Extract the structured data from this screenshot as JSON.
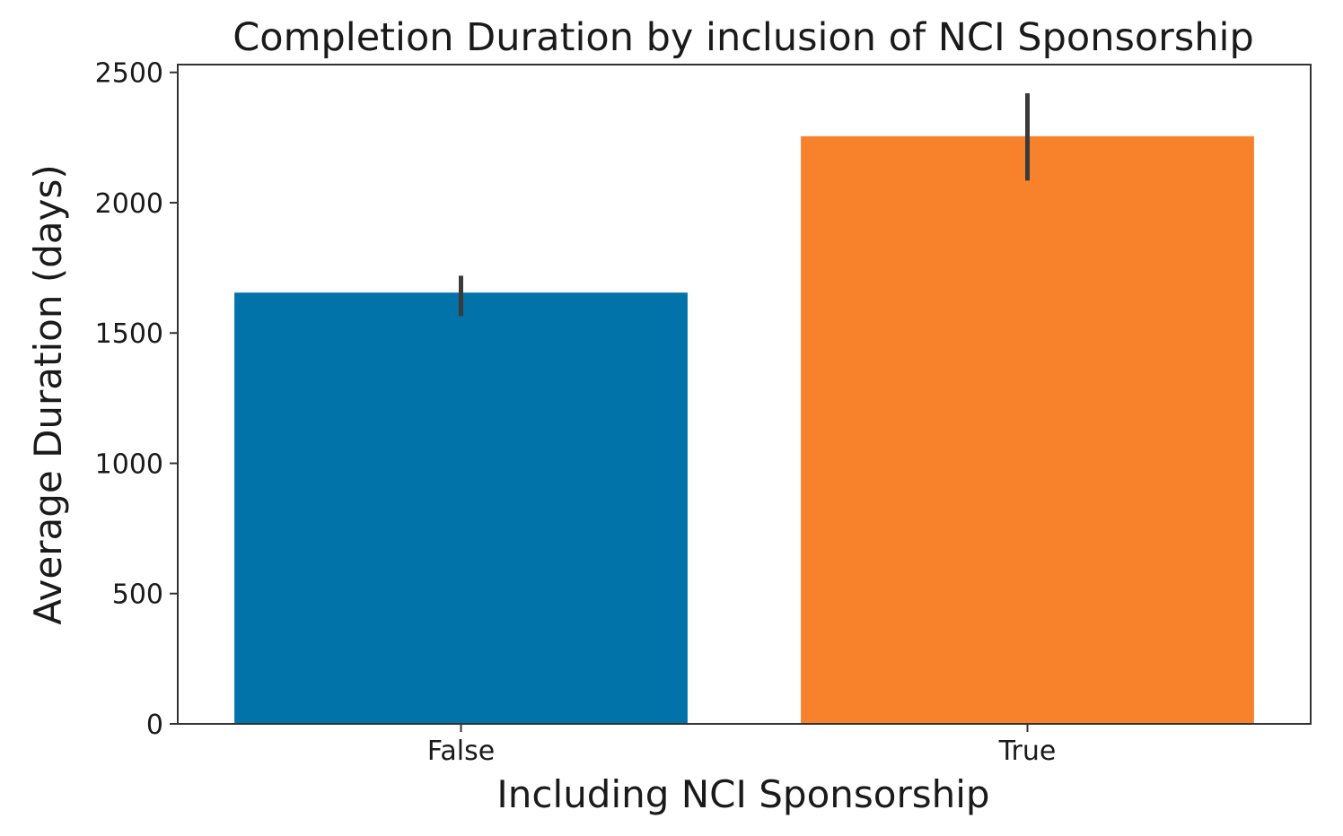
{
  "chart_data": {
    "type": "bar",
    "title": "Completion Duration by inclusion of NCI Sponsorship",
    "xlabel": "Including NCI Sponsorship",
    "ylabel": "Average Duration (days)",
    "categories": [
      "False",
      "True"
    ],
    "values": [
      1655,
      2255
    ],
    "error_low": [
      1565,
      2085
    ],
    "error_high": [
      1720,
      2420
    ],
    "colors": [
      "#0173a8",
      "#f8812c"
    ],
    "ylim": [
      0,
      2530
    ],
    "yticks": [
      0,
      500,
      1000,
      1500,
      2000,
      2500
    ],
    "grid": false,
    "legend": "none"
  }
}
